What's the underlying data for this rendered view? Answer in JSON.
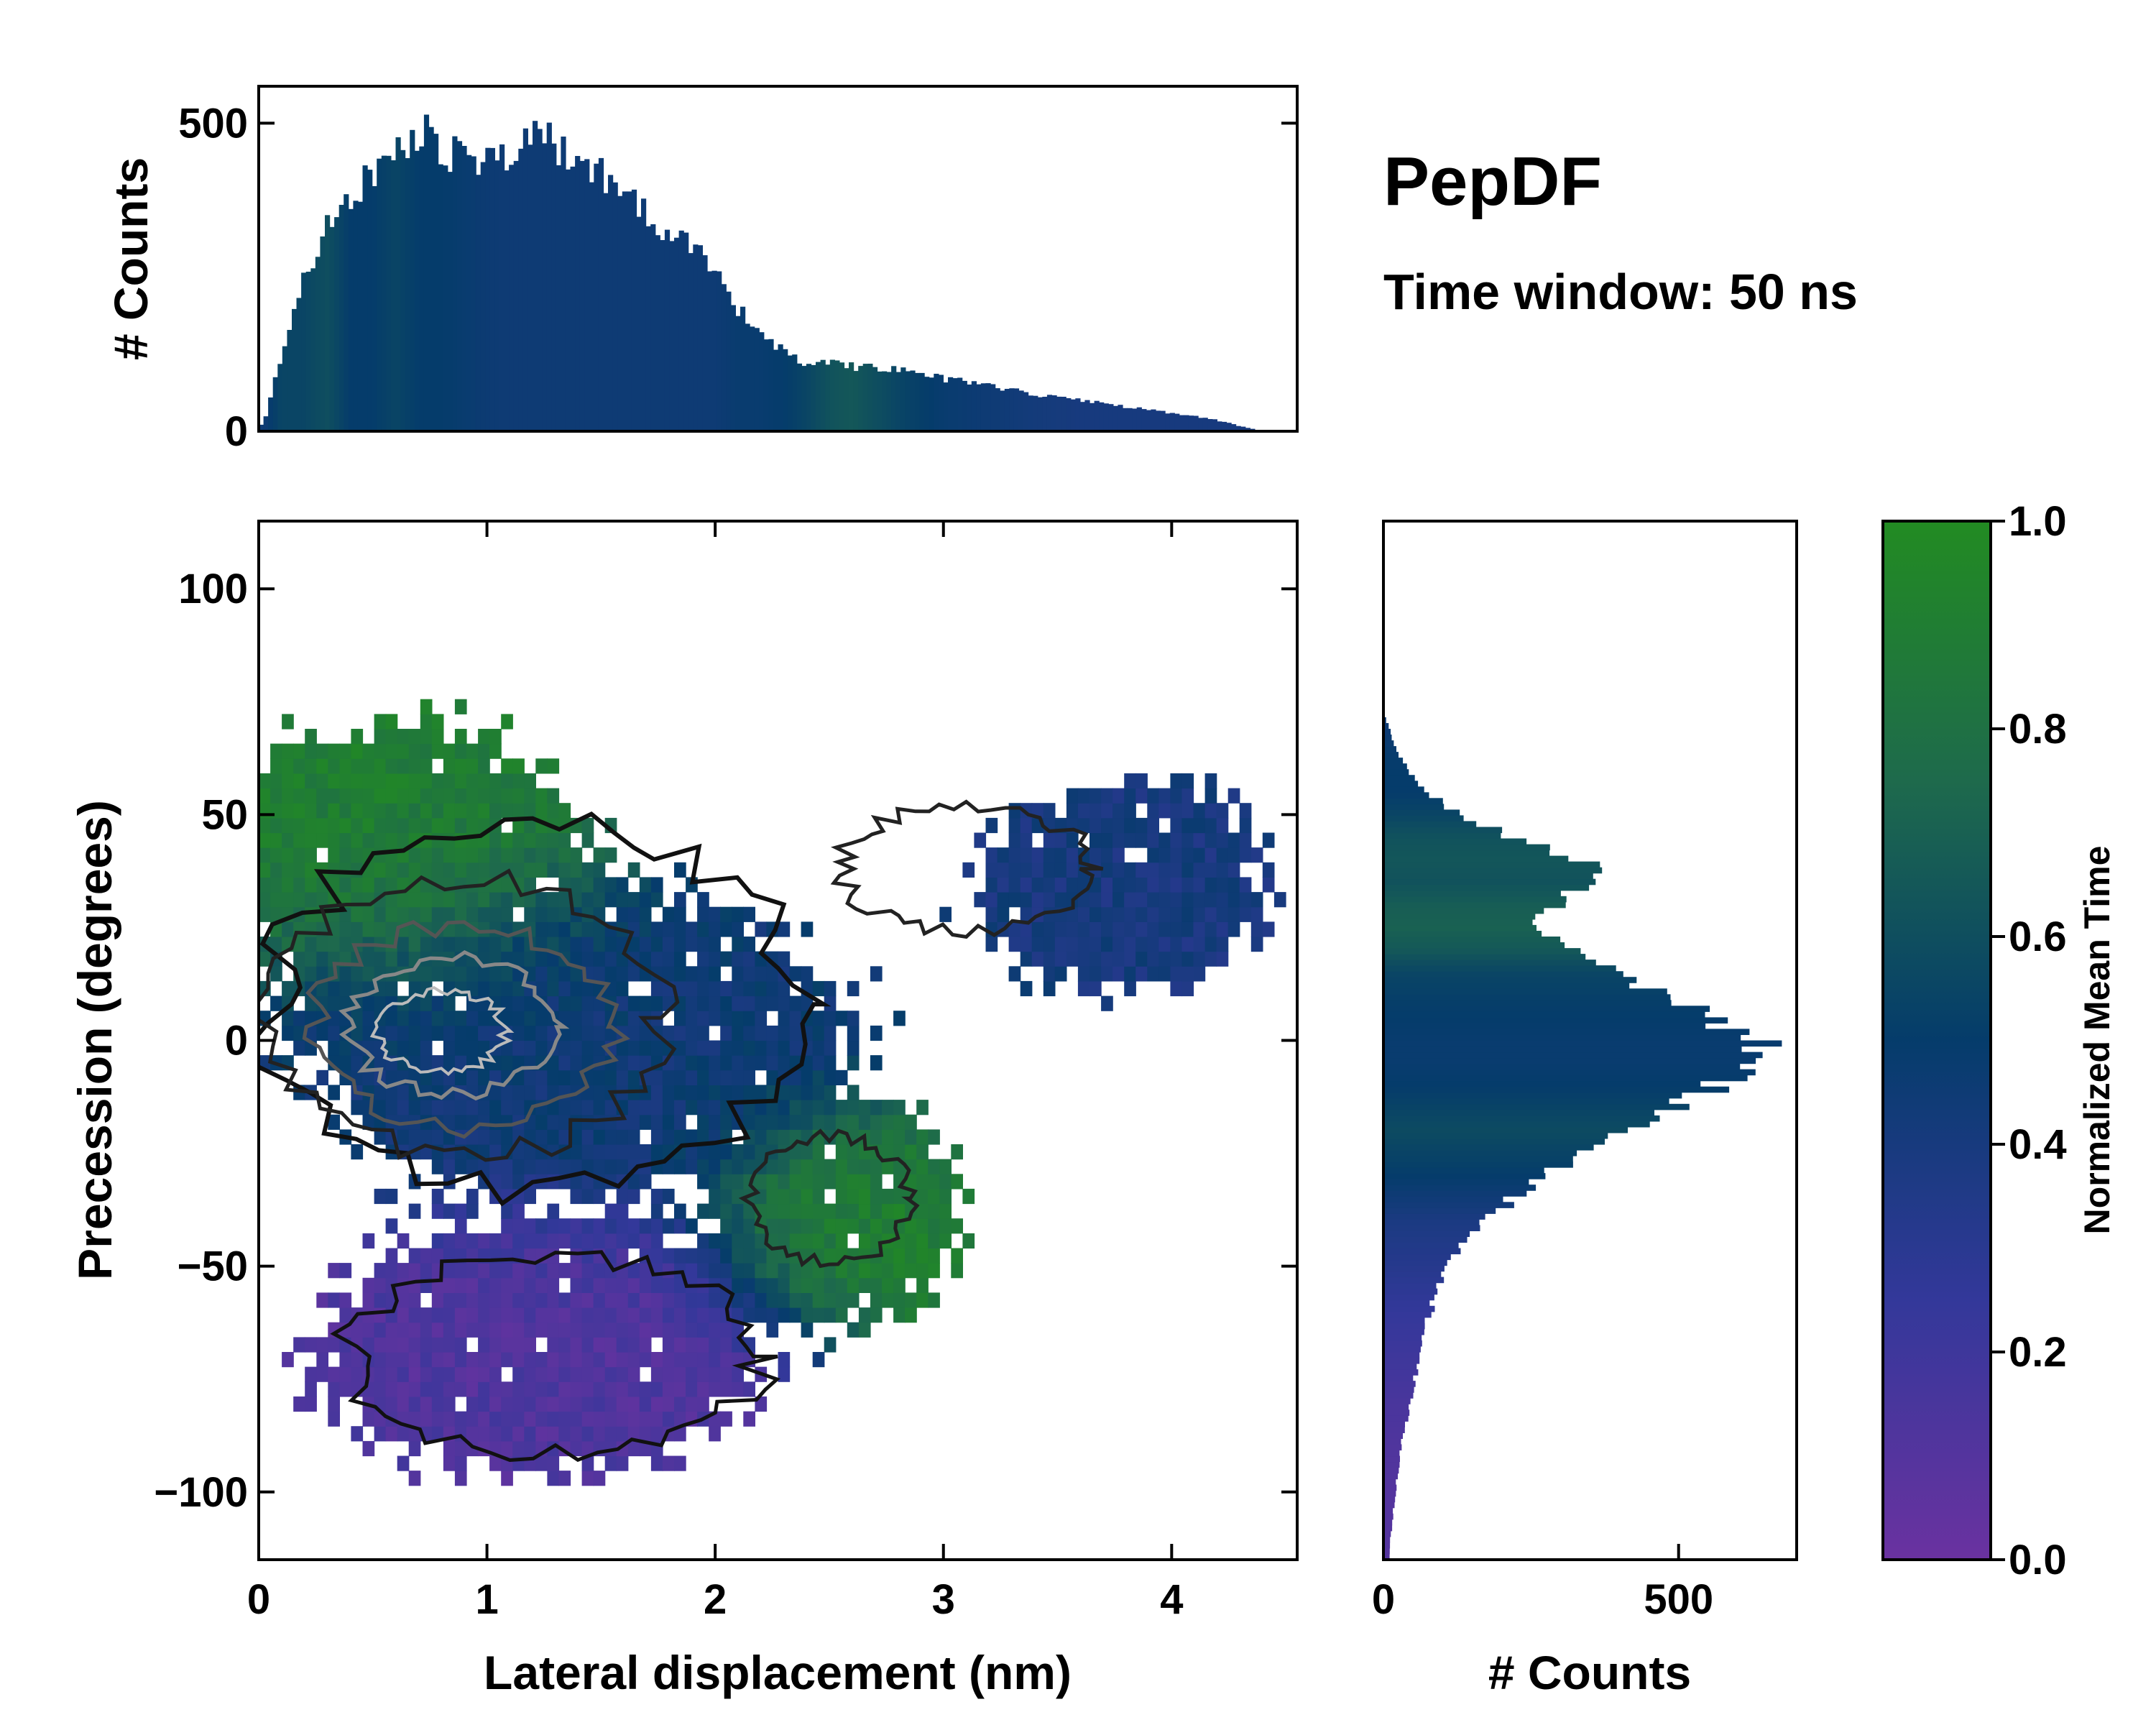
{
  "figure": {
    "title": "PepDF",
    "subtitle": "Time window: 50 ns"
  },
  "chart_data": [
    {
      "id": "main",
      "type": "heatmap",
      "xlabel": "Lateral displacement (nm)",
      "ylabel": "Precession (degrees)",
      "xlim": [
        0,
        4.55
      ],
      "ylim": [
        -115,
        115
      ],
      "xticks": [
        0,
        1,
        2,
        3,
        4
      ],
      "xtick_labels": [
        "0",
        "1",
        "2",
        "3",
        "4"
      ],
      "yticks": [
        -100,
        -50,
        0,
        50,
        100
      ],
      "ytick_labels": [
        "−100",
        "−50",
        "0",
        "50",
        "100"
      ],
      "color_variable": "Normalized Mean Time",
      "regions": [
        {
          "name": "upper-left-green",
          "center": [
            0.6,
            45
          ],
          "spread": [
            0.7,
            25
          ],
          "time": 0.9
        },
        {
          "name": "central-blue",
          "center": [
            1.4,
            0
          ],
          "spread": [
            1.1,
            30
          ],
          "time": 0.45
        },
        {
          "name": "upper-right-blue",
          "center": [
            3.8,
            35
          ],
          "spread": [
            0.6,
            22
          ],
          "time": 0.4
        },
        {
          "name": "lower-right-green",
          "center": [
            2.6,
            -40
          ],
          "spread": [
            0.45,
            20
          ],
          "time": 0.92
        },
        {
          "name": "lower-purple",
          "center": [
            1.2,
            -70
          ],
          "spread": [
            0.9,
            25
          ],
          "time": 0.12
        }
      ]
    },
    {
      "id": "top",
      "type": "bar",
      "ylabel": "# Counts",
      "xlim": [
        0,
        4.55
      ],
      "ylim": [
        0,
        560
      ],
      "yticks": [
        0,
        500
      ],
      "ytick_labels": [
        "0",
        "500"
      ],
      "x": [
        0.02,
        0.1,
        0.2,
        0.3,
        0.4,
        0.5,
        0.6,
        0.7,
        0.75,
        0.8,
        0.9,
        1.0,
        1.1,
        1.2,
        1.25,
        1.3,
        1.4,
        1.5,
        1.6,
        1.7,
        1.8,
        1.9,
        2.0,
        2.1,
        2.2,
        2.3,
        2.4,
        2.5,
        2.6,
        2.8,
        3.0,
        3.2,
        3.4,
        3.6,
        3.8,
        4.0,
        4.2,
        4.3,
        4.4
      ],
      "y": [
        10,
        120,
        250,
        330,
        380,
        420,
        450,
        470,
        520,
        460,
        440,
        440,
        450,
        470,
        480,
        460,
        440,
        420,
        380,
        350,
        320,
        300,
        260,
        200,
        160,
        130,
        110,
        110,
        105,
        100,
        85,
        75,
        60,
        50,
        40,
        30,
        18,
        8,
        0
      ],
      "time": [
        0.45,
        0.55,
        0.55,
        0.6,
        0.5,
        0.5,
        0.55,
        0.5,
        0.5,
        0.5,
        0.48,
        0.46,
        0.45,
        0.45,
        0.45,
        0.45,
        0.45,
        0.45,
        0.45,
        0.45,
        0.45,
        0.45,
        0.45,
        0.48,
        0.48,
        0.5,
        0.55,
        0.62,
        0.65,
        0.55,
        0.48,
        0.45,
        0.42,
        0.4,
        0.4,
        0.4,
        0.4,
        0.4,
        0.4
      ]
    },
    {
      "id": "right",
      "type": "bar",
      "orientation": "horizontal",
      "xlabel": "# Counts",
      "xlim": [
        0,
        700
      ],
      "xticks": [
        0,
        500
      ],
      "xtick_labels": [
        "0",
        "500"
      ],
      "ylim": [
        -115,
        115
      ],
      "y": [
        -115,
        -110,
        -100,
        -90,
        -80,
        -70,
        -60,
        -50,
        -40,
        -30,
        -20,
        -10,
        -5,
        0,
        5,
        10,
        15,
        20,
        25,
        30,
        35,
        40,
        45,
        50,
        55,
        60,
        65,
        70,
        72
      ],
      "x": [
        10,
        12,
        20,
        30,
        45,
        60,
        80,
        105,
        170,
        270,
        420,
        560,
        610,
        640,
        560,
        470,
        400,
        320,
        260,
        290,
        350,
        340,
        220,
        130,
        70,
        40,
        20,
        8,
        0
      ],
      "time": [
        0.1,
        0.1,
        0.1,
        0.12,
        0.15,
        0.2,
        0.25,
        0.32,
        0.38,
        0.5,
        0.58,
        0.5,
        0.48,
        0.48,
        0.5,
        0.52,
        0.55,
        0.65,
        0.7,
        0.68,
        0.62,
        0.64,
        0.62,
        0.55,
        0.5,
        0.5,
        0.48,
        0.45,
        0.45
      ]
    },
    {
      "id": "colorbar",
      "type": "heatmap",
      "label": "Normalized Mean Time",
      "range": [
        0,
        1
      ],
      "ticks": [
        0.0,
        0.2,
        0.4,
        0.6,
        0.8,
        1.0
      ],
      "tick_labels": [
        "0.0",
        "0.2",
        "0.4",
        "0.6",
        "0.8",
        "1.0"
      ],
      "colormap_stops": [
        {
          "value": 0.0,
          "color": "#6a32a0"
        },
        {
          "value": 0.25,
          "color": "#33389a"
        },
        {
          "value": 0.5,
          "color": "#053c6b"
        },
        {
          "value": 0.75,
          "color": "#1e6a4c"
        },
        {
          "value": 1.0,
          "color": "#228b22"
        }
      ]
    }
  ]
}
